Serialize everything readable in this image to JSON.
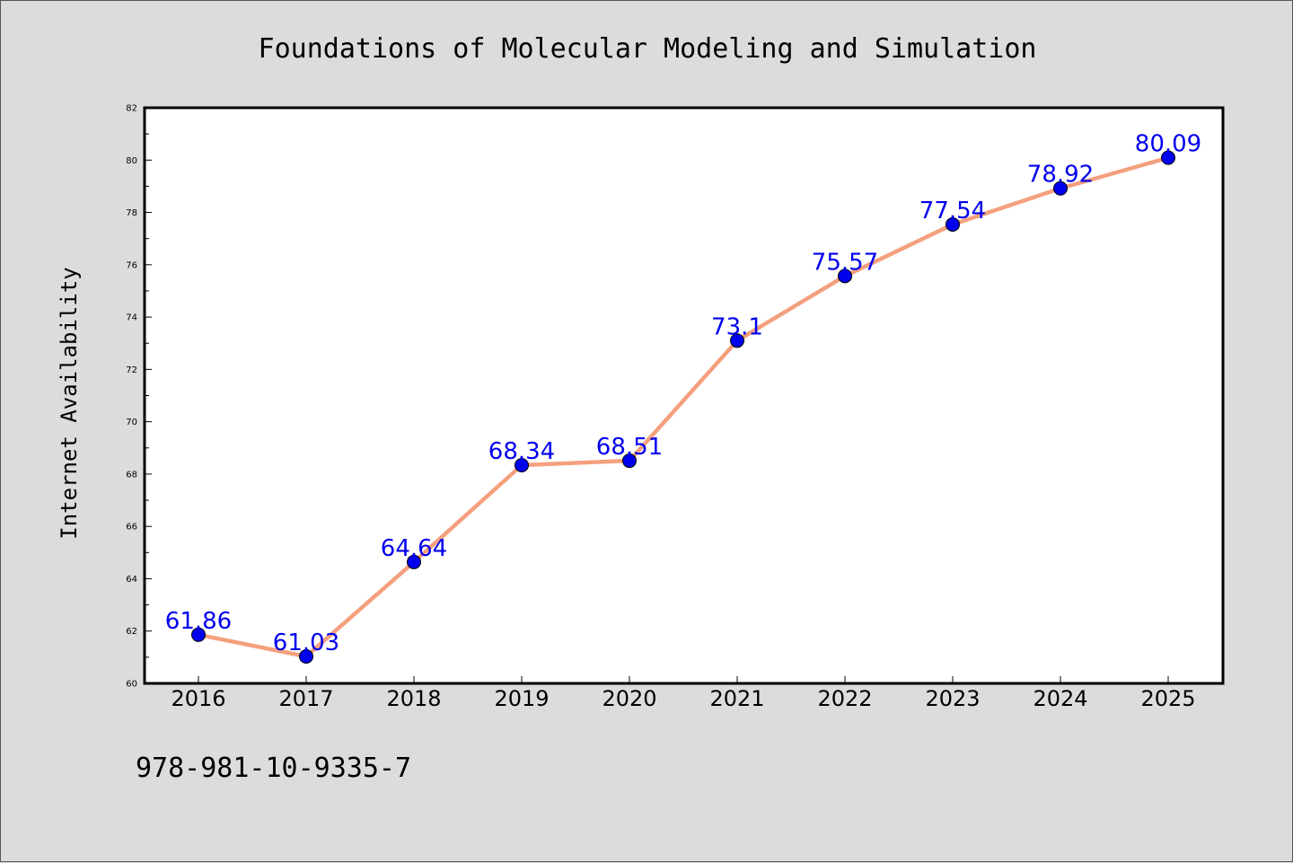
{
  "chart_data": {
    "type": "line",
    "title": "Foundations of Molecular Modeling and Simulation",
    "ylabel": "Internet Availability",
    "xlabel": "",
    "x": [
      "2016",
      "2017",
      "2018",
      "2019",
      "2020",
      "2021",
      "2022",
      "2023",
      "2024",
      "2025"
    ],
    "series": [
      {
        "values": [
          61.86,
          61.03,
          64.64,
          68.34,
          68.51,
          73.1,
          75.57,
          77.54,
          78.92,
          80.09
        ],
        "data_labels": [
          "61.86",
          "61.03",
          "64.64",
          "68.34",
          "68.51",
          "73.1",
          "75.57",
          "77.54",
          "78.92",
          "80.09"
        ],
        "line_color": "#f4a07e",
        "marker_color": "#0000ee",
        "label_color": "#0000ee"
      }
    ],
    "ylim": [
      60,
      82
    ],
    "yticks": [
      "60",
      "62",
      "64",
      "66",
      "68",
      "70",
      "72",
      "74",
      "76",
      "78",
      "80",
      "82"
    ],
    "grid": false,
    "legend": "none"
  },
  "footer": {
    "isbn": "978-981-10-9335-7"
  }
}
